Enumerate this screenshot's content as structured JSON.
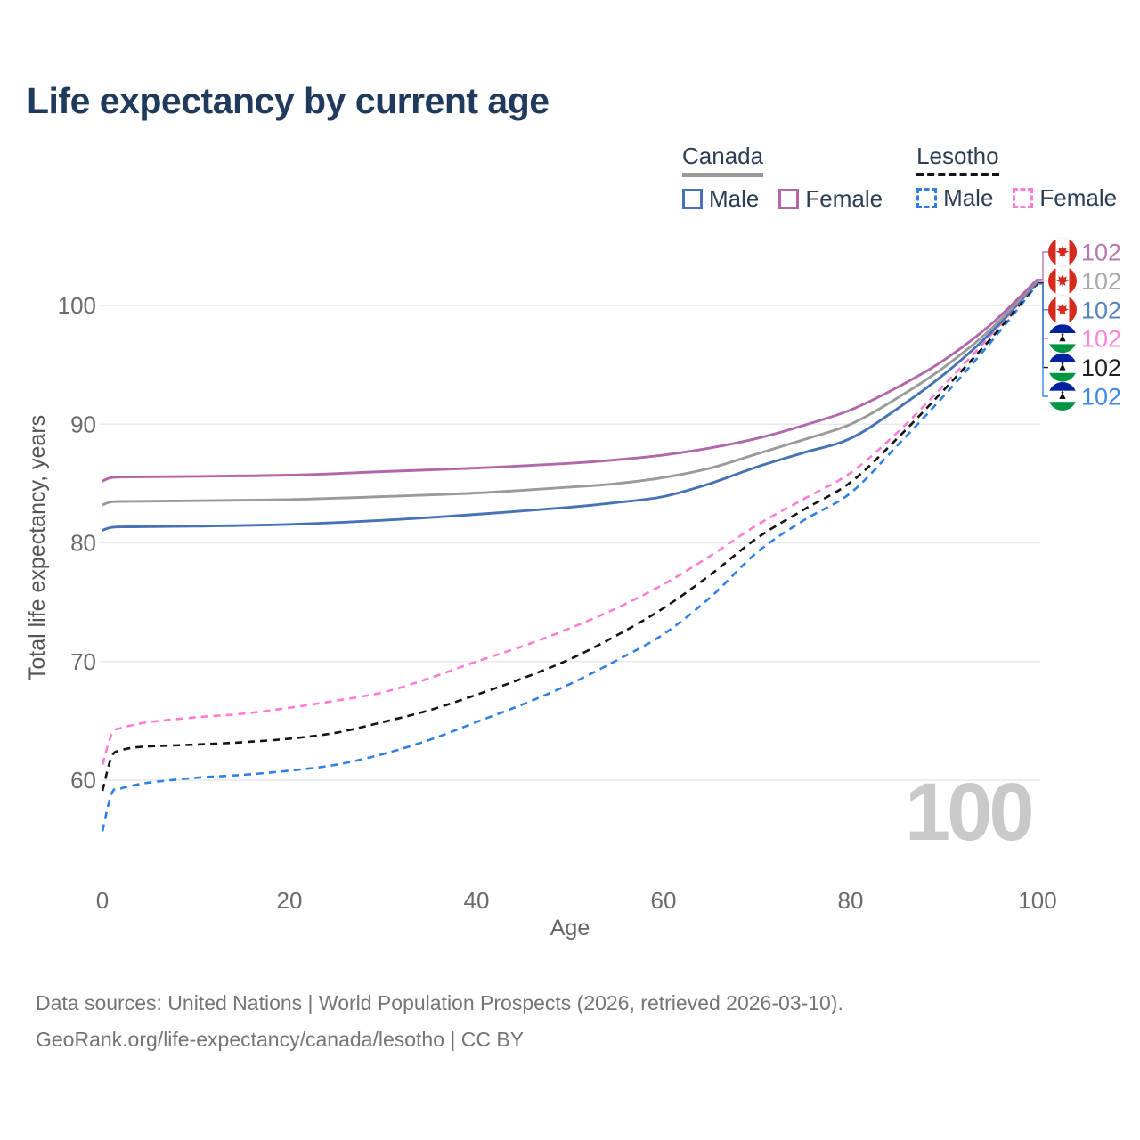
{
  "title": "Life expectancy by current age",
  "legend": {
    "groups": [
      {
        "label": "Canada",
        "underline_style": "solid",
        "underline_color": "#999999",
        "items": [
          {
            "label": "Male",
            "box_color": "#4573b5",
            "box_style": "solid"
          },
          {
            "label": "Female",
            "box_color": "#b167a9",
            "box_style": "solid"
          }
        ]
      },
      {
        "label": "Lesotho",
        "underline_style": "dashed",
        "underline_color": "#141414",
        "items": [
          {
            "label": "Male",
            "box_color": "#2e80e8",
            "box_style": "dashed"
          },
          {
            "label": "Female",
            "box_color": "#ff7bd4",
            "box_style": "dashed"
          }
        ]
      }
    ]
  },
  "footer": {
    "line1": "Data sources: United Nations | World Population Prospects (2026, retrieved 2026-03-10).",
    "line2": "GeoRank.org/life-expectancy/canada/lesotho | CC BY"
  },
  "chart_data": {
    "type": "line",
    "title": "Life expectancy by current age",
    "xlabel": "Age",
    "ylabel": "Total life expectancy, years",
    "xlim": [
      0,
      100
    ],
    "ylim": [
      54,
      104
    ],
    "x_ticks": [
      0,
      20,
      40,
      60,
      80,
      100
    ],
    "y_ticks": [
      60,
      70,
      80,
      90,
      100
    ],
    "grid": "horizontal",
    "watermark": "100",
    "series": [
      {
        "id": "lesotho-male",
        "name": "Lesotho Male",
        "country": "Lesotho",
        "color": "#2e80e8",
        "dashed": true,
        "end_label": "102",
        "points": [
          [
            0,
            55.7
          ],
          [
            1,
            58.9
          ],
          [
            2,
            59.3
          ],
          [
            3,
            59.5
          ],
          [
            5,
            59.8
          ],
          [
            10,
            60.2
          ],
          [
            15,
            60.45
          ],
          [
            20,
            60.8
          ],
          [
            25,
            61.3
          ],
          [
            30,
            62.2
          ],
          [
            35,
            63.4
          ],
          [
            40,
            64.9
          ],
          [
            45,
            66.4
          ],
          [
            50,
            68.1
          ],
          [
            55,
            70.1
          ],
          [
            60,
            72.3
          ],
          [
            65,
            75.4
          ],
          [
            70,
            79.2
          ],
          [
            75,
            81.9
          ],
          [
            80,
            84.2
          ],
          [
            85,
            88.2
          ],
          [
            90,
            92.4
          ],
          [
            95,
            96.9
          ],
          [
            100,
            101.8
          ]
        ]
      },
      {
        "id": "lesotho-average",
        "name": "Lesotho",
        "country": "Lesotho",
        "color": "#141414",
        "dashed": true,
        "end_label": "102",
        "points": [
          [
            0,
            59.1
          ],
          [
            1,
            62.0
          ],
          [
            2,
            62.5
          ],
          [
            3,
            62.7
          ],
          [
            5,
            62.85
          ],
          [
            10,
            63.0
          ],
          [
            15,
            63.2
          ],
          [
            20,
            63.5
          ],
          [
            25,
            64.0
          ],
          [
            30,
            64.9
          ],
          [
            35,
            65.9
          ],
          [
            40,
            67.2
          ],
          [
            45,
            68.6
          ],
          [
            50,
            70.2
          ],
          [
            55,
            72.2
          ],
          [
            60,
            74.5
          ],
          [
            65,
            77.3
          ],
          [
            70,
            80.4
          ],
          [
            75,
            82.8
          ],
          [
            80,
            85.1
          ],
          [
            85,
            88.8
          ],
          [
            90,
            92.9
          ],
          [
            95,
            97.2
          ],
          [
            100,
            101.9
          ]
        ]
      },
      {
        "id": "lesotho-female",
        "name": "Lesotho Female",
        "country": "Lesotho",
        "color": "#ff7bd4",
        "dashed": true,
        "end_label": "102",
        "points": [
          [
            0,
            61.3
          ],
          [
            1,
            63.9
          ],
          [
            2,
            64.4
          ],
          [
            3,
            64.6
          ],
          [
            5,
            64.9
          ],
          [
            10,
            65.3
          ],
          [
            15,
            65.6
          ],
          [
            20,
            66.1
          ],
          [
            25,
            66.7
          ],
          [
            30,
            67.4
          ],
          [
            35,
            68.6
          ],
          [
            40,
            70.0
          ],
          [
            45,
            71.3
          ],
          [
            50,
            72.8
          ],
          [
            55,
            74.5
          ],
          [
            60,
            76.5
          ],
          [
            65,
            78.9
          ],
          [
            70,
            81.5
          ],
          [
            75,
            83.7
          ],
          [
            80,
            85.9
          ],
          [
            85,
            89.3
          ],
          [
            90,
            93.3
          ],
          [
            95,
            97.5
          ],
          [
            100,
            102.0
          ]
        ]
      },
      {
        "id": "canada-male",
        "name": "Canada Male",
        "country": "Canada",
        "color": "#4573b5",
        "dashed": false,
        "end_label": "102",
        "points": [
          [
            0,
            81.05
          ],
          [
            1,
            81.3
          ],
          [
            3,
            81.35
          ],
          [
            10,
            81.4
          ],
          [
            20,
            81.55
          ],
          [
            30,
            81.9
          ],
          [
            40,
            82.4
          ],
          [
            50,
            83.0
          ],
          [
            55,
            83.4
          ],
          [
            60,
            83.9
          ],
          [
            65,
            85.0
          ],
          [
            70,
            86.4
          ],
          [
            75,
            87.6
          ],
          [
            80,
            88.8
          ],
          [
            85,
            91.3
          ],
          [
            90,
            94.2
          ],
          [
            95,
            97.7
          ],
          [
            100,
            102.0
          ]
        ]
      },
      {
        "id": "canada-average",
        "name": "Canada",
        "country": "Canada",
        "color": "#9a9a9a",
        "dashed": false,
        "end_label": "102",
        "points": [
          [
            0,
            83.2
          ],
          [
            1,
            83.45
          ],
          [
            3,
            83.5
          ],
          [
            10,
            83.55
          ],
          [
            20,
            83.65
          ],
          [
            30,
            83.9
          ],
          [
            40,
            84.2
          ],
          [
            50,
            84.7
          ],
          [
            55,
            85.0
          ],
          [
            60,
            85.5
          ],
          [
            65,
            86.3
          ],
          [
            70,
            87.5
          ],
          [
            75,
            88.7
          ],
          [
            80,
            90.0
          ],
          [
            85,
            92.2
          ],
          [
            90,
            94.8
          ],
          [
            95,
            98.0
          ],
          [
            100,
            102.1
          ]
        ]
      },
      {
        "id": "canada-female",
        "name": "Canada Female",
        "country": "Canada",
        "color": "#b167a9",
        "dashed": false,
        "end_label": "102",
        "points": [
          [
            0,
            85.2
          ],
          [
            1,
            85.5
          ],
          [
            3,
            85.55
          ],
          [
            10,
            85.6
          ],
          [
            20,
            85.7
          ],
          [
            30,
            86.0
          ],
          [
            40,
            86.3
          ],
          [
            50,
            86.7
          ],
          [
            55,
            87.0
          ],
          [
            60,
            87.4
          ],
          [
            65,
            88.0
          ],
          [
            70,
            88.8
          ],
          [
            75,
            89.9
          ],
          [
            80,
            91.2
          ],
          [
            85,
            93.1
          ],
          [
            90,
            95.4
          ],
          [
            95,
            98.4
          ],
          [
            100,
            102.2
          ]
        ]
      }
    ],
    "end_labels": [
      {
        "series": "canada-female",
        "flag": "canada",
        "text": "102",
        "color": "#b778b1"
      },
      {
        "series": "canada-average",
        "flag": "canada",
        "text": "102",
        "color": "#a9a9a9"
      },
      {
        "series": "canada-male",
        "flag": "canada",
        "text": "102",
        "color": "#5583c0"
      },
      {
        "series": "lesotho-female",
        "flag": "lesotho",
        "text": "102",
        "color": "#ff85d8"
      },
      {
        "series": "lesotho-average",
        "flag": "lesotho",
        "text": "102",
        "color": "#1f1f1f"
      },
      {
        "series": "lesotho-male",
        "flag": "lesotho",
        "text": "102",
        "color": "#3e88e8"
      }
    ],
    "flag_colors": {
      "canada_red": "#d52b1e",
      "lesotho_blue": "#00209f",
      "lesotho_green": "#009543",
      "lesotho_hat": "#111111"
    }
  }
}
